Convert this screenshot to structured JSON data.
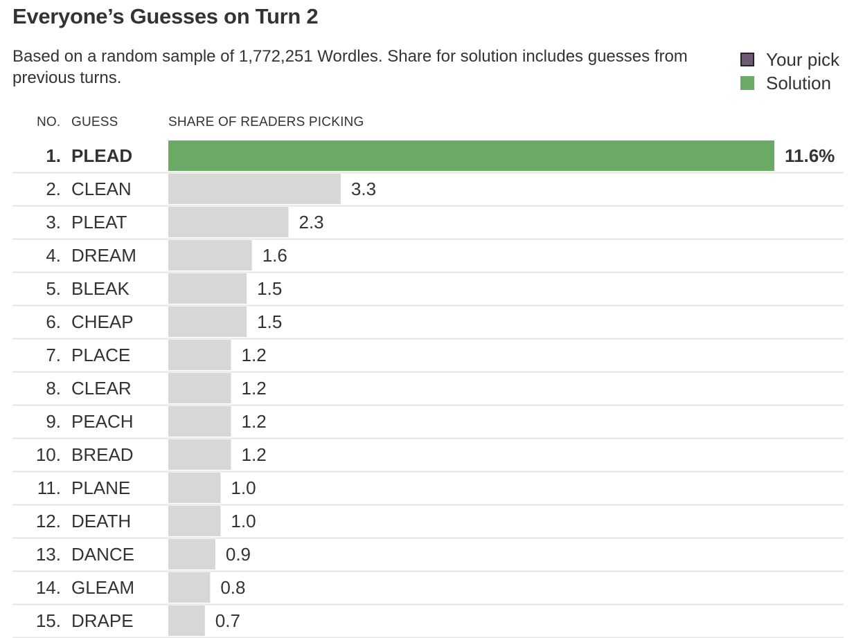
{
  "title": "Everyone’s Guesses on Turn 2",
  "subtitle": "Based on a random sample of 1,772,251 Wordles. Share for solution includes guesses from previous turns.",
  "legend": {
    "items": [
      {
        "label": "Your pick",
        "color": "#6e5a73"
      },
      {
        "label": "Solution",
        "color": "#6aaa64"
      }
    ]
  },
  "columns": {
    "no": "NO.",
    "guess": "GUESS",
    "share": "SHARE OF READERS PICKING"
  },
  "colors": {
    "solution": "#6aaa64",
    "default_bar": "#d7d7d7",
    "row_divider": "#e6e6e6"
  },
  "chart_data": {
    "type": "bar",
    "orientation": "horizontal",
    "title": "Everyone’s Guesses on Turn 2",
    "xlabel": "SHARE OF READERS PICKING",
    "xlim": [
      0,
      11.6
    ],
    "grid": false,
    "legend_position": "top-right",
    "unit_suffix_first": "%",
    "rows": [
      {
        "rank": "1.",
        "guess": "PLEAD",
        "value": 11.6,
        "label": "11.6%",
        "solution": true
      },
      {
        "rank": "2.",
        "guess": "CLEAN",
        "value": 3.3,
        "label": "3.3",
        "solution": false
      },
      {
        "rank": "3.",
        "guess": "PLEAT",
        "value": 2.3,
        "label": "2.3",
        "solution": false
      },
      {
        "rank": "4.",
        "guess": "DREAM",
        "value": 1.6,
        "label": "1.6",
        "solution": false
      },
      {
        "rank": "5.",
        "guess": "BLEAK",
        "value": 1.5,
        "label": "1.5",
        "solution": false
      },
      {
        "rank": "6.",
        "guess": "CHEAP",
        "value": 1.5,
        "label": "1.5",
        "solution": false
      },
      {
        "rank": "7.",
        "guess": "PLACE",
        "value": 1.2,
        "label": "1.2",
        "solution": false
      },
      {
        "rank": "8.",
        "guess": "CLEAR",
        "value": 1.2,
        "label": "1.2",
        "solution": false
      },
      {
        "rank": "9.",
        "guess": "PEACH",
        "value": 1.2,
        "label": "1.2",
        "solution": false
      },
      {
        "rank": "10.",
        "guess": "BREAD",
        "value": 1.2,
        "label": "1.2",
        "solution": false
      },
      {
        "rank": "11.",
        "guess": "PLANE",
        "value": 1.0,
        "label": "1.0",
        "solution": false
      },
      {
        "rank": "12.",
        "guess": "DEATH",
        "value": 1.0,
        "label": "1.0",
        "solution": false
      },
      {
        "rank": "13.",
        "guess": "DANCE",
        "value": 0.9,
        "label": "0.9",
        "solution": false
      },
      {
        "rank": "14.",
        "guess": "GLEAM",
        "value": 0.8,
        "label": "0.8",
        "solution": false
      },
      {
        "rank": "15.",
        "guess": "DRAPE",
        "value": 0.7,
        "label": "0.7",
        "solution": false
      }
    ]
  }
}
